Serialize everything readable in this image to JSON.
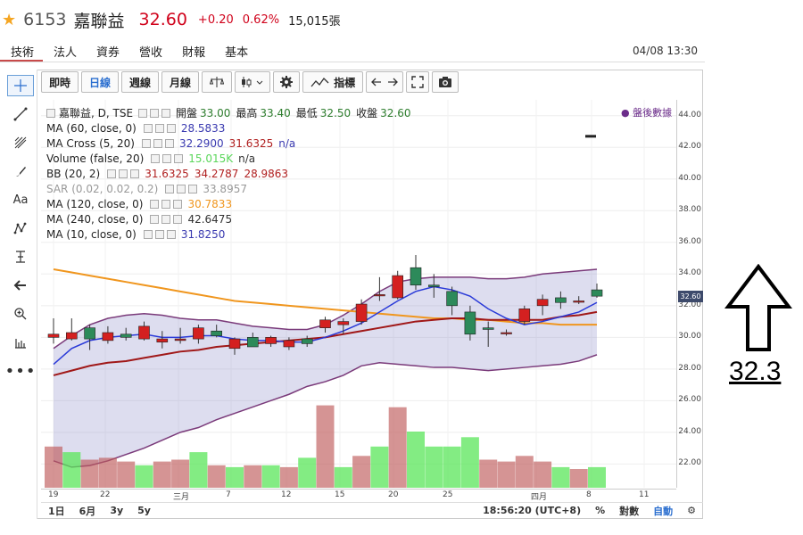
{
  "header": {
    "code": "6153",
    "name": "嘉聯益",
    "price": "32.60",
    "change": "+0.20",
    "change_pct": "0.62%",
    "volume": "15,015張"
  },
  "tabs": [
    "技術",
    "法人",
    "資券",
    "營收",
    "財報",
    "基本"
  ],
  "datetime": "04/08 13:30",
  "toolbar": {
    "intraday": "即時",
    "daily": "日線",
    "weekly": "週線",
    "monthly": "月線",
    "indicators": "指標"
  },
  "legend": {
    "title": "嘉聯益, D, TSE",
    "ohlc": {
      "open_label": "開盤",
      "open": "33.00",
      "high_label": "最高",
      "high": "33.40",
      "low_label": "最低",
      "low": "32.50",
      "close_label": "收盤",
      "close": "32.60"
    },
    "rows": [
      {
        "name": "MA (60, close, 0)",
        "values": [
          "28.5833"
        ],
        "colors": [
          "#3a3ab0"
        ]
      },
      {
        "name": "MA Cross (5, 20)",
        "values": [
          "32.2900",
          "31.6325",
          "n/a"
        ],
        "colors": [
          "#3a3ab0",
          "#b02020",
          "#3a3ab0"
        ]
      },
      {
        "name": "Volume (false, 20)",
        "values": [
          "15.015K",
          "n/a"
        ],
        "colors": [
          "#5ad65a",
          "#333"
        ]
      },
      {
        "name": "BB (20, 2)",
        "values": [
          "31.6325",
          "34.2787",
          "28.9863"
        ],
        "colors": [
          "#b02020",
          "#b02020",
          "#b02020"
        ]
      },
      {
        "name": "SAR (0.02, 0.02, 0.2)",
        "values": [
          "33.8957"
        ],
        "colors": [
          "#999"
        ]
      },
      {
        "name": "MA (120, close, 0)",
        "values": [
          "30.7833"
        ],
        "colors": [
          "#f0961e"
        ]
      },
      {
        "name": "MA (240, close, 0)",
        "values": [
          "42.6475"
        ],
        "colors": [
          "#333"
        ]
      },
      {
        "name": "MA (10, close, 0)",
        "values": [
          "31.8250"
        ],
        "colors": [
          "#3a3ab0"
        ]
      }
    ],
    "after_hours": "● 盤後數據"
  },
  "yaxis": {
    "ticks": [
      "44.00",
      "42.00",
      "40.00",
      "38.00",
      "36.00",
      "34.00",
      "32.00",
      "30.00",
      "28.00",
      "26.00",
      "24.00",
      "22.00"
    ],
    "current": "32.60"
  },
  "xaxis": {
    "ticks": [
      "19",
      "22",
      "三月",
      "7",
      "12",
      "15",
      "20",
      "25",
      "四月",
      "8",
      "11"
    ]
  },
  "bottom": {
    "ranges": [
      "1日",
      "6月",
      "3y",
      "5y"
    ],
    "time": "18:56:20 (UTC+8)",
    "pct": "%",
    "log": "對數",
    "auto": "自動"
  },
  "annotation": "32.3",
  "chart_data": {
    "type": "candlestick",
    "ylim": [
      20.5,
      45
    ],
    "candles": [
      {
        "o": 30.0,
        "h": 31.2,
        "l": 29.6,
        "c": 30.2
      },
      {
        "o": 29.9,
        "h": 31.2,
        "l": 29.8,
        "c": 30.3
      },
      {
        "o": 30.6,
        "h": 30.8,
        "l": 29.2,
        "c": 29.9
      },
      {
        "o": 29.8,
        "h": 30.7,
        "l": 29.6,
        "c": 30.3
      },
      {
        "o": 30.2,
        "h": 30.6,
        "l": 29.8,
        "c": 30.0
      },
      {
        "o": 29.9,
        "h": 31.0,
        "l": 29.8,
        "c": 30.7
      },
      {
        "o": 29.7,
        "h": 30.4,
        "l": 29.3,
        "c": 29.9
      },
      {
        "o": 29.8,
        "h": 30.6,
        "l": 29.6,
        "c": 29.9
      },
      {
        "o": 29.9,
        "h": 30.8,
        "l": 29.6,
        "c": 30.6
      },
      {
        "o": 30.4,
        "h": 30.8,
        "l": 30.0,
        "c": 30.1
      },
      {
        "o": 29.3,
        "h": 30.0,
        "l": 28.9,
        "c": 29.9
      },
      {
        "o": 30.0,
        "h": 30.3,
        "l": 29.6,
        "c": 29.4
      },
      {
        "o": 29.6,
        "h": 30.1,
        "l": 29.4,
        "c": 30.0
      },
      {
        "o": 29.4,
        "h": 30.0,
        "l": 29.2,
        "c": 29.8
      },
      {
        "o": 29.9,
        "h": 30.1,
        "l": 29.4,
        "c": 29.6
      },
      {
        "o": 30.6,
        "h": 31.3,
        "l": 30.3,
        "c": 31.1
      },
      {
        "o": 30.8,
        "h": 31.2,
        "l": 30.2,
        "c": 31.0
      },
      {
        "o": 31.0,
        "h": 32.4,
        "l": 30.8,
        "c": 32.1
      },
      {
        "o": 32.7,
        "h": 33.8,
        "l": 32.3,
        "c": 32.7
      },
      {
        "o": 32.5,
        "h": 34.2,
        "l": 32.4,
        "c": 33.9
      },
      {
        "o": 34.4,
        "h": 35.2,
        "l": 33.0,
        "c": 33.3
      },
      {
        "o": 33.3,
        "h": 34.0,
        "l": 32.5,
        "c": 33.2
      },
      {
        "o": 32.9,
        "h": 33.2,
        "l": 31.4,
        "c": 32.0
      },
      {
        "o": 31.6,
        "h": 32.0,
        "l": 29.8,
        "c": 30.2
      },
      {
        "o": 30.6,
        "h": 31.0,
        "l": 29.4,
        "c": 30.5
      },
      {
        "o": 30.3,
        "h": 30.5,
        "l": 30.1,
        "c": 30.3
      },
      {
        "o": 31.0,
        "h": 32.0,
        "l": 30.8,
        "c": 31.8
      },
      {
        "o": 32.0,
        "h": 32.7,
        "l": 31.4,
        "c": 32.4
      },
      {
        "o": 32.5,
        "h": 32.9,
        "l": 31.8,
        "c": 32.2
      },
      {
        "o": 32.3,
        "h": 32.6,
        "l": 32.1,
        "c": 32.3
      },
      {
        "o": 33.0,
        "h": 33.4,
        "l": 32.5,
        "c": 32.6
      }
    ],
    "volumes": [
      22,
      19,
      15,
      16,
      14,
      12,
      14,
      15,
      19,
      12,
      11,
      12,
      12,
      11,
      16,
      44,
      11,
      17,
      22,
      43,
      30,
      22,
      22,
      27,
      15,
      14,
      17,
      14,
      11,
      10,
      11
    ],
    "volume_colors": [
      "down",
      "up",
      "down",
      "down",
      "down",
      "up",
      "down",
      "down",
      "up",
      "down",
      "up",
      "down",
      "up",
      "down",
      "up",
      "down",
      "up",
      "down",
      "up",
      "down",
      "up",
      "up",
      "up",
      "up",
      "down",
      "down",
      "down",
      "down",
      "up",
      "down",
      "up"
    ],
    "ma120": [
      34.3,
      34.1,
      33.9,
      33.7,
      33.5,
      33.3,
      33.1,
      32.9,
      32.7,
      32.5,
      32.3,
      32.2,
      32.1,
      32.0,
      31.9,
      31.8,
      31.7,
      31.6,
      31.5,
      31.4,
      31.3,
      31.2,
      31.2,
      31.1,
      31.1,
      31.0,
      30.9,
      30.9,
      30.8,
      30.8,
      30.8
    ],
    "ma20": [
      27.6,
      27.9,
      28.2,
      28.4,
      28.5,
      28.7,
      28.9,
      29.1,
      29.2,
      29.4,
      29.5,
      29.6,
      29.7,
      29.8,
      29.9,
      30.0,
      30.2,
      30.4,
      30.6,
      30.8,
      31.0,
      31.1,
      31.2,
      31.2,
      31.1,
      31.1,
      31.1,
      31.1,
      31.3,
      31.4,
      31.6
    ],
    "ma5": [
      28.3,
      29.3,
      29.8,
      30.0,
      30.1,
      30.2,
      30.0,
      30.0,
      30.1,
      30.1,
      29.9,
      29.8,
      29.8,
      29.7,
      29.7,
      30.0,
      30.4,
      30.9,
      31.6,
      32.3,
      32.9,
      33.2,
      33.0,
      32.6,
      31.8,
      31.2,
      30.8,
      31.0,
      31.3,
      31.6,
      32.2
    ],
    "bb_upper": [
      29.3,
      30.1,
      30.8,
      31.2,
      31.4,
      31.5,
      31.4,
      31.2,
      31.1,
      31.1,
      30.9,
      30.7,
      30.6,
      30.5,
      30.5,
      30.8,
      31.4,
      32.1,
      32.9,
      33.5,
      33.7,
      33.8,
      33.8,
      33.8,
      33.7,
      33.7,
      33.8,
      34.0,
      34.1,
      34.2,
      34.3
    ],
    "bb_lower": [
      22.2,
      21.8,
      21.9,
      22.2,
      22.6,
      23.0,
      23.5,
      24.0,
      24.3,
      24.8,
      25.2,
      25.6,
      26.0,
      26.4,
      26.9,
      27.2,
      27.6,
      28.2,
      28.4,
      28.3,
      28.2,
      28.1,
      28.1,
      28.0,
      27.9,
      28.0,
      28.1,
      28.2,
      28.3,
      28.5,
      28.9
    ]
  }
}
